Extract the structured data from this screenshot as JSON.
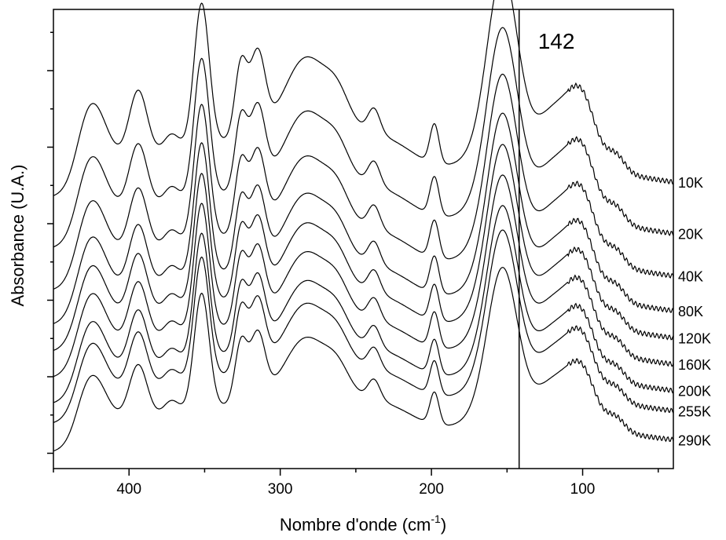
{
  "chart_data": {
    "type": "line",
    "xlabel": "Nombre d'onde (cm",
    "xlabel_sup": "-1",
    "xlabel_tail": ")",
    "ylabel": "Absorbance (U.A.)",
    "xlim": [
      450,
      40
    ],
    "x_reversed": true,
    "ylim": [
      -0.2,
      5.8
    ],
    "x_ticks": [
      400,
      300,
      200,
      100
    ],
    "x_tick_labels": [
      "400",
      "300",
      "200",
      "100"
    ],
    "y_ticks_shown_without_labels": true,
    "grid": false,
    "annotation": {
      "text": "142",
      "x": 142
    },
    "vertical_line_x": 142,
    "series": [
      {
        "name": "10K",
        "offset": 3.33,
        "amp": 1.0
      },
      {
        "name": "20K",
        "offset": 2.66,
        "amp": 0.98
      },
      {
        "name": "40K",
        "offset": 2.11,
        "amp": 0.96
      },
      {
        "name": "80K",
        "offset": 1.66,
        "amp": 0.94
      },
      {
        "name": "120K",
        "offset": 1.31,
        "amp": 0.92
      },
      {
        "name": "160K",
        "offset": 0.97,
        "amp": 0.9
      },
      {
        "name": "200K",
        "offset": 0.63,
        "amp": 0.88
      },
      {
        "name": "255K",
        "offset": 0.37,
        "amp": 0.86
      },
      {
        "name": "290K",
        "offset": 0.0,
        "amp": 0.82
      }
    ],
    "series_labels": [
      "10K",
      "20K",
      "40K",
      "80K",
      "120K",
      "160K",
      "200K",
      "255K",
      "290K"
    ]
  }
}
